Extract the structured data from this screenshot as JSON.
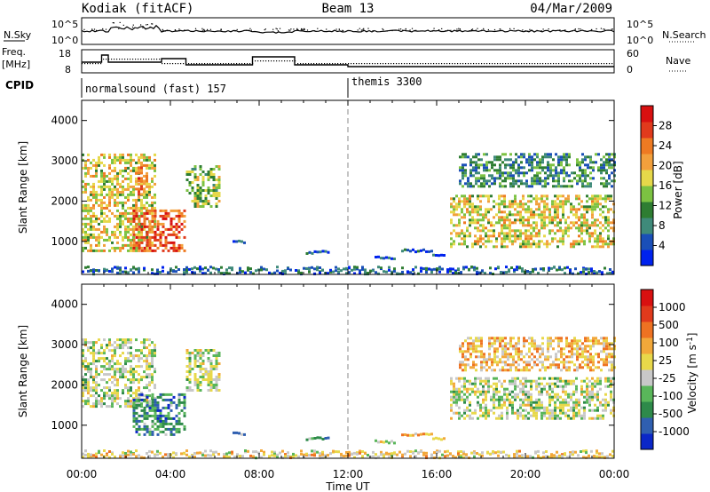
{
  "header": {
    "station": "Kodiak (fitACF)",
    "beam": "Beam 13",
    "date": "04/Mar/2009"
  },
  "noise_panel": {
    "left_label": "N.Sky",
    "right_label": "N.Search",
    "left_ticks": [
      "10^5",
      "10^0"
    ],
    "right_ticks": [
      "10^5",
      "10^0"
    ]
  },
  "freq_panel": {
    "left_label_1": "Freq.",
    "left_label_2": "[MHz]",
    "right_label": "Nave",
    "left_ticks": [
      "18",
      "8"
    ],
    "right_ticks": [
      "60",
      "0"
    ]
  },
  "cpid_panel": {
    "label": "CPID",
    "segments": [
      {
        "start_hour": 0,
        "text": "normalsound (fast) 157"
      },
      {
        "start_hour": 12,
        "text": "themis 3300"
      }
    ]
  },
  "chart_data": [
    {
      "type": "heatmap",
      "panel": "power",
      "ylabel": "Slant Range [km]",
      "xlabel": "Time UT",
      "x_ticks": [
        "00:00",
        "04:00",
        "08:00",
        "12:00",
        "16:00",
        "20:00",
        "00:00"
      ],
      "x_range_hours": [
        0,
        24
      ],
      "y_ticks": [
        1000,
        2000,
        3000,
        4000
      ],
      "ylim": [
        180,
        4500
      ],
      "colorbar": {
        "label": "Power [dB]",
        "ticks": [
          "4",
          "8",
          "12",
          "16",
          "20",
          "24",
          "28"
        ],
        "colors": [
          "#0022ee",
          "#1a4fb8",
          "#3f8a7a",
          "#2e7d32",
          "#7cc242",
          "#e6d84a",
          "#f2a03c",
          "#ee7a22",
          "#e03a1c",
          "#d81010"
        ]
      },
      "marker_hour": 12,
      "echo_regions": [
        {
          "t0": 0.0,
          "t1": 3.3,
          "r0": 800,
          "r1": 3200,
          "level": 0.55
        },
        {
          "t0": 2.3,
          "t1": 4.6,
          "r0": 800,
          "r1": 1800,
          "level": 0.8
        },
        {
          "t0": 2.4,
          "t1": 3.0,
          "r0": 2200,
          "r1": 2900,
          "level": 0.75
        },
        {
          "t0": 4.7,
          "t1": 6.2,
          "r0": 1900,
          "r1": 2900,
          "level": 0.45
        },
        {
          "t0": 16.6,
          "t1": 24.0,
          "r0": 900,
          "r1": 2200,
          "level": 0.55
        },
        {
          "t0": 17.0,
          "t1": 24.0,
          "r0": 2400,
          "r1": 3200,
          "level": 0.3
        }
      ],
      "strips": [
        {
          "t0": 6.8,
          "t1": 7.4,
          "r": 1020,
          "level": 0.1
        },
        {
          "t0": 10.1,
          "t1": 11.1,
          "r": 760,
          "level": 0.15
        },
        {
          "t0": 13.2,
          "t1": 14.1,
          "r": 620,
          "level": 0.1
        },
        {
          "t0": 14.4,
          "t1": 15.8,
          "r": 800,
          "level": 0.15
        },
        {
          "t0": 15.8,
          "t1": 16.4,
          "r": 700,
          "level": 0.1
        }
      ]
    },
    {
      "type": "heatmap",
      "panel": "velocity",
      "ylabel": "Slant Range [km]",
      "xlabel": "Time UT",
      "x_ticks": [
        "00:00",
        "04:00",
        "08:00",
        "12:00",
        "16:00",
        "20:00",
        "00:00"
      ],
      "x_range_hours": [
        0,
        24
      ],
      "y_ticks": [
        1000,
        2000,
        3000,
        4000
      ],
      "ylim": [
        180,
        4500
      ],
      "colorbar": {
        "label": "Velocity [m s^-1]",
        "ticks": [
          "1000",
          "500",
          "100",
          "25",
          "-25",
          "-100",
          "-500",
          "-1000"
        ],
        "colors": [
          "#0b27c8",
          "#2f5fb0",
          "#2e8a4a",
          "#59b65a",
          "#c8c8c8",
          "#e8d84a",
          "#f2a83a",
          "#ee7222",
          "#e03a1c",
          "#d81010"
        ]
      },
      "marker_hour": 12,
      "echo_regions": [
        {
          "t0": 0.0,
          "t1": 3.3,
          "r0": 1500,
          "r1": 3200,
          "level": 0.45
        },
        {
          "t0": 2.3,
          "t1": 4.6,
          "r0": 800,
          "r1": 1800,
          "level": 0.25
        },
        {
          "t0": 4.7,
          "t1": 6.2,
          "r0": 1900,
          "r1": 2900,
          "level": 0.45
        },
        {
          "t0": 16.6,
          "t1": 24.0,
          "r0": 1200,
          "r1": 2200,
          "level": 0.45
        },
        {
          "t0": 17.0,
          "t1": 24.0,
          "r0": 2400,
          "r1": 3200,
          "level": 0.6
        }
      ],
      "strips": [
        {
          "t0": 6.8,
          "t1": 7.4,
          "r": 820,
          "level": 0.3
        },
        {
          "t0": 10.1,
          "t1": 11.1,
          "r": 700,
          "level": 0.3
        },
        {
          "t0": 13.2,
          "t1": 14.1,
          "r": 620,
          "level": 0.5
        },
        {
          "t0": 14.4,
          "t1": 15.8,
          "r": 800,
          "level": 0.6
        },
        {
          "t0": 15.8,
          "t1": 16.4,
          "r": 700,
          "level": 0.6
        }
      ]
    }
  ]
}
